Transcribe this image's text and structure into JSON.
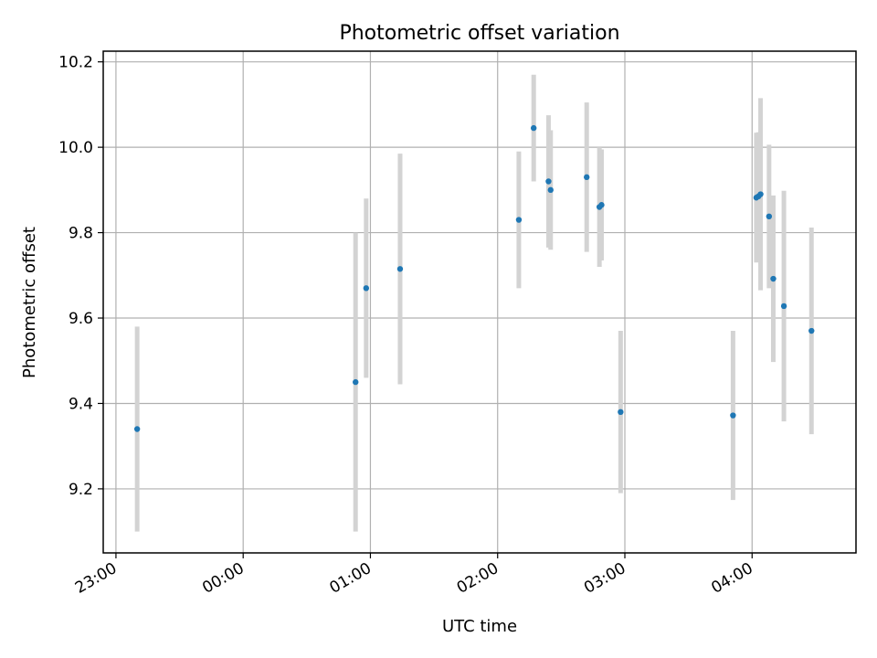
{
  "chart_data": {
    "type": "scatter",
    "title": "Photometric offset variation",
    "xlabel": "UTC time",
    "ylabel": "Photometric offset",
    "x_ticks": [
      "23:00",
      "00:00",
      "01:00",
      "02:00",
      "03:00",
      "04:00"
    ],
    "y_ticks": [
      "9.2",
      "9.4",
      "9.6",
      "9.8",
      "10.0",
      "10.2"
    ],
    "xlim": [
      "22:54",
      "04:49"
    ],
    "ylim": [
      9.05,
      10.225
    ],
    "grid": true,
    "colors": {
      "point": "#1f77b4",
      "errorbar": "#d3d3d3"
    },
    "points": [
      {
        "x": "23:10",
        "y": 9.34,
        "err": 0.24
      },
      {
        "x": "00:53",
        "y": 9.45,
        "err": 0.35
      },
      {
        "x": "00:58",
        "y": 9.67,
        "err": 0.21
      },
      {
        "x": "01:14",
        "y": 9.715,
        "err": 0.27
      },
      {
        "x": "02:10",
        "y": 9.83,
        "err": 0.16
      },
      {
        "x": "02:17",
        "y": 10.045,
        "err": 0.125
      },
      {
        "x": "02:24",
        "y": 9.92,
        "err": 0.155
      },
      {
        "x": "02:25",
        "y": 9.9,
        "err": 0.14
      },
      {
        "x": "02:42",
        "y": 9.93,
        "err": 0.175
      },
      {
        "x": "02:48",
        "y": 9.86,
        "err": 0.14
      },
      {
        "x": "02:49",
        "y": 9.865,
        "err": 0.13
      },
      {
        "x": "02:58",
        "y": 9.38,
        "err": 0.19
      },
      {
        "x": "03:51",
        "y": 9.372,
        "err": 0.198
      },
      {
        "x": "04:02",
        "y": 9.882,
        "err": 0.152
      },
      {
        "x": "04:03",
        "y": 9.885,
        "err": 0.15
      },
      {
        "x": "04:04",
        "y": 9.89,
        "err": 0.225
      },
      {
        "x": "04:08",
        "y": 9.838,
        "err": 0.168
      },
      {
        "x": "04:10",
        "y": 9.692,
        "err": 0.195
      },
      {
        "x": "04:15",
        "y": 9.628,
        "err": 0.27
      },
      {
        "x": "04:28",
        "y": 9.57,
        "err": 0.242
      }
    ]
  }
}
